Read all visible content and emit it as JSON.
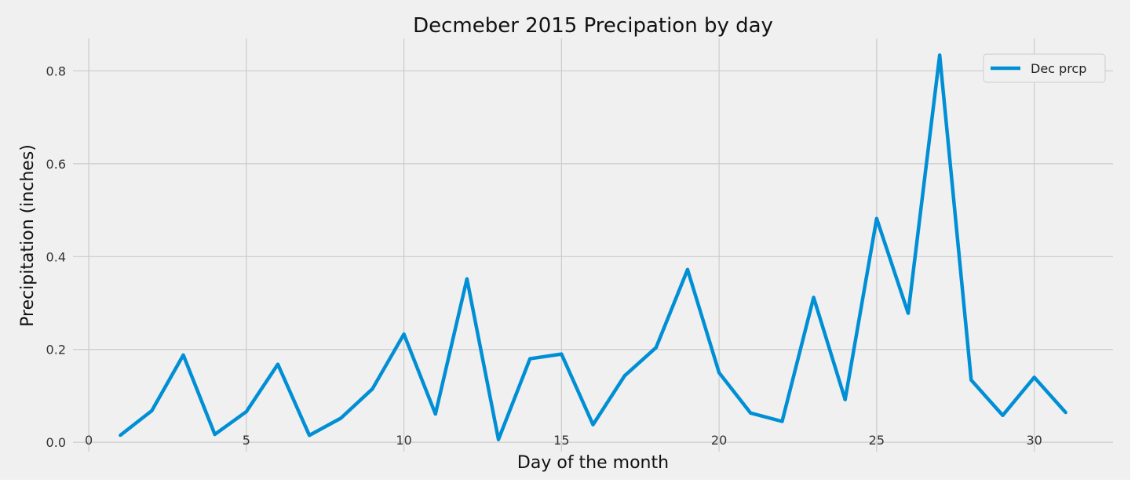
{
  "chart_data": {
    "type": "line",
    "title": "Decmeber 2015 Precipation by day",
    "xlabel": "Day of the month",
    "ylabel": "Precipitation (inches)",
    "xlim": [
      -0.5,
      32.5
    ],
    "ylim": [
      -0.02,
      0.87
    ],
    "xticks": [
      0,
      5,
      10,
      15,
      20,
      25,
      30
    ],
    "yticks": [
      0.0,
      0.2,
      0.4,
      0.6,
      0.8
    ],
    "ytick_labels": [
      "0.0",
      "0.2",
      "0.4",
      "0.6",
      "0.8"
    ],
    "grid": true,
    "legend_position": "top-right",
    "series": [
      {
        "name": "Dec prcp",
        "color": "#008fd5",
        "x": [
          1,
          2,
          3,
          4,
          5,
          6,
          7,
          8,
          9,
          10,
          11,
          12,
          13,
          14,
          15,
          16,
          17,
          18,
          19,
          20,
          21,
          22,
          23,
          24,
          25,
          26,
          27,
          28,
          29,
          30,
          31
        ],
        "values": [
          0.015,
          0.068,
          0.188,
          0.017,
          0.066,
          0.168,
          0.015,
          0.052,
          0.115,
          0.233,
          0.061,
          0.352,
          0.006,
          0.18,
          0.19,
          0.038,
          0.143,
          0.204,
          0.372,
          0.15,
          0.063,
          0.045,
          0.312,
          0.092,
          0.482,
          0.278,
          0.834,
          0.134,
          0.058,
          0.14,
          0.064
        ]
      }
    ]
  },
  "colors": {
    "figure_background": "#f0f0f0",
    "grid": "#cbcbcb",
    "line": "#008fd5"
  }
}
